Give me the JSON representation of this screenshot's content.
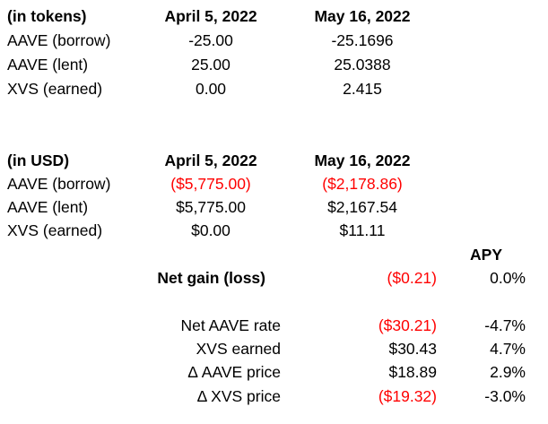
{
  "tokens": {
    "header": {
      "label": "(in tokens)",
      "date1": "April 5, 2022",
      "date2": "May 16, 2022"
    },
    "rows": [
      {
        "label": "AAVE (borrow)",
        "v1": "-25.00",
        "v2": "-25.1696"
      },
      {
        "label": "AAVE (lent)",
        "v1": "25.00",
        "v2": "25.0388"
      },
      {
        "label": "XVS (earned)",
        "v1": "0.00",
        "v2": "2.415"
      }
    ]
  },
  "usd": {
    "header": {
      "label": "(in USD)",
      "date1": "April 5, 2022",
      "date2": "May 16, 2022"
    },
    "rows": [
      {
        "label": "AAVE (borrow)",
        "v1": "($5,775.00)",
        "v2": "($2,178.86)"
      },
      {
        "label": "AAVE (lent)",
        "v1": "$5,775.00",
        "v2": "$2,167.54"
      },
      {
        "label": "XVS (earned)",
        "v1": "$0.00",
        "v2": "$11.11"
      }
    ]
  },
  "summary": {
    "apy_header": "APY",
    "net_gain": {
      "label": "Net gain (loss)",
      "value": "($0.21)",
      "apy": "0.0%"
    },
    "breakdown": [
      {
        "label": "Net AAVE rate",
        "value": "($30.21)",
        "apy": "-4.7%"
      },
      {
        "label": "XVS earned",
        "value": "$30.43",
        "apy": "4.7%"
      },
      {
        "label": "Δ AAVE price",
        "value": "$18.89",
        "apy": "2.9%"
      },
      {
        "label": "Δ XVS price",
        "value": "($19.32)",
        "apy": "-3.0%"
      }
    ]
  },
  "colors": {
    "negative": "#ff0000",
    "text": "#000000"
  }
}
